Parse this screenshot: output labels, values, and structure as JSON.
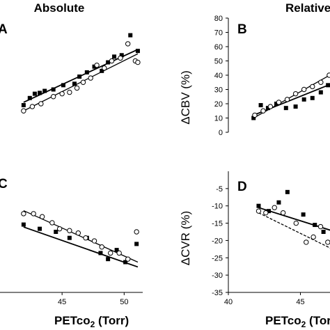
{
  "headers": {
    "left": "Absolute",
    "right": "Relative"
  },
  "x_axis_label": {
    "main": "PETco",
    "sub": "2",
    "unit": " (Torr)"
  },
  "chart_data": [
    {
      "panel": "A",
      "type": "scatter",
      "xticks": [
        "45",
        "50"
      ],
      "xlim": [
        40,
        52
      ],
      "series": [
        {
          "marker": "filled-square",
          "points": [
            [
              41.9,
              19.5
            ],
            [
              42.4,
              22
            ],
            [
              42.8,
              23.5
            ],
            [
              43.2,
              23.8
            ],
            [
              43.6,
              24.5
            ],
            [
              44.3,
              25
            ],
            [
              45.1,
              26.5
            ],
            [
              46,
              27
            ],
            [
              46.4,
              29.5
            ],
            [
              47,
              31
            ],
            [
              47.6,
              33
            ],
            [
              48.2,
              31.5
            ],
            [
              48.7,
              34.5
            ],
            [
              49.2,
              36.5
            ],
            [
              49.8,
              37
            ],
            [
              50.5,
              44
            ],
            [
              51.1,
              38.5
            ]
          ],
          "fit": [
            [
              41.9,
              20.5
            ],
            [
              51.1,
              39
            ]
          ]
        },
        {
          "marker": "open-circle",
          "points": [
            [
              41.9,
              17.5
            ],
            [
              42.6,
              19
            ],
            [
              43.3,
              20
            ],
            [
              44.3,
              22.5
            ],
            [
              45,
              23.5
            ],
            [
              45.6,
              24
            ],
            [
              46.2,
              25.5
            ],
            [
              46.7,
              27.5
            ],
            [
              47.3,
              29
            ],
            [
              47.8,
              33.5
            ],
            [
              48.4,
              32.5
            ],
            [
              49,
              35
            ],
            [
              49.7,
              36
            ],
            [
              50.3,
              41
            ],
            [
              50.9,
              35
            ],
            [
              51.1,
              34.5
            ]
          ],
          "fit": [
            [
              41.9,
              17.5
            ],
            [
              51.1,
              37.5
            ]
          ]
        }
      ]
    },
    {
      "panel": "B",
      "type": "scatter",
      "ylabel": "ΔCBV  (%)",
      "yticks": [
        "0",
        "10",
        "20",
        "30",
        "40",
        "50",
        "60",
        "70",
        "80"
      ],
      "ylim": [
        0,
        80
      ],
      "xlim": [
        40,
        52
      ],
      "series": [
        {
          "marker": "filled-square",
          "points": [
            [
              42.1,
              10
            ],
            [
              42.7,
              19
            ],
            [
              43.3,
              17
            ],
            [
              44,
              20
            ],
            [
              44.8,
              17
            ],
            [
              45.6,
              18
            ],
            [
              46.3,
              23
            ],
            [
              47,
              24
            ],
            [
              47.7,
              28
            ],
            [
              48.3,
              33
            ],
            [
              49,
              37
            ],
            [
              49.5,
              27
            ]
          ],
          "fit": [
            [
              42.1,
              12
            ],
            [
              49.5,
              37
            ]
          ]
        },
        {
          "marker": "open-circle",
          "points": [
            [
              42.2,
              12
            ],
            [
              42.9,
              15
            ],
            [
              43.5,
              18
            ],
            [
              44.2,
              21
            ],
            [
              44.9,
              23
            ],
            [
              45.6,
              27
            ],
            [
              46.3,
              30
            ],
            [
              47,
              32
            ],
            [
              47.7,
              35
            ],
            [
              48.4,
              40
            ],
            [
              49,
              45
            ],
            [
              49.5,
              42
            ]
          ],
          "fit": [
            [
              42.1,
              10
            ],
            [
              49.5,
              45
            ]
          ]
        }
      ]
    },
    {
      "panel": "C",
      "type": "scatter",
      "xticks": [
        "45",
        "50"
      ],
      "xlim": [
        40,
        52
      ],
      "series": [
        {
          "marker": "filled-square",
          "points": [
            [
              41.9,
              -14.8
            ],
            [
              43.2,
              -15.5
            ],
            [
              44.5,
              -16
            ],
            [
              45.6,
              -17
            ],
            [
              47,
              -17
            ],
            [
              48.1,
              -19.5
            ],
            [
              48.7,
              -20.5
            ],
            [
              49.4,
              -19
            ],
            [
              50.1,
              -21
            ],
            [
              51,
              -18
            ]
          ],
          "fit": [
            [
              41.9,
              -15.2
            ],
            [
              51.1,
              -21.8
            ]
          ]
        },
        {
          "marker": "open-circle",
          "points": [
            [
              41.9,
              -13
            ],
            [
              42.7,
              -13
            ],
            [
              43.4,
              -13.5
            ],
            [
              44.2,
              -14.5
            ],
            [
              44.8,
              -15.5
            ],
            [
              45.6,
              -15.8
            ],
            [
              46.3,
              -16.2
            ],
            [
              46.9,
              -17
            ],
            [
              47.6,
              -17.5
            ],
            [
              48.2,
              -18.5
            ],
            [
              48.9,
              -19.5
            ],
            [
              49.6,
              -19.5
            ],
            [
              50.3,
              -20.5
            ],
            [
              51,
              -16
            ]
          ],
          "fit": [
            [
              41.9,
              -12.5
            ],
            [
              51.1,
              -21
            ]
          ]
        }
      ]
    },
    {
      "panel": "D",
      "type": "scatter",
      "ylabel": "ΔCVR  (%)",
      "yticks": [
        "-5",
        "-10",
        "-15",
        "-20",
        "-25",
        "-30",
        "-35"
      ],
      "ylim": [
        -35,
        0
      ],
      "xticks": [
        "40",
        "45"
      ],
      "xlim": [
        40,
        50
      ],
      "series": [
        {
          "marker": "filled-square",
          "points": [
            [
              42.1,
              -10
            ],
            [
              42.8,
              -11.5
            ],
            [
              43.5,
              -9
            ],
            [
              44.1,
              -6
            ],
            [
              45.2,
              -12.5
            ],
            [
              46,
              -15.5
            ],
            [
              46.6,
              -17.5
            ],
            [
              47.2,
              -16.5
            ],
            [
              47.6,
              -22
            ],
            [
              48.2,
              -24.5
            ]
          ],
          "fit": [
            [
              42.1,
              -10.5
            ],
            [
              48.2,
              -18.5
            ]
          ]
        },
        {
          "marker": "open-circle",
          "points": [
            [
              42.1,
              -11.5
            ],
            [
              42.6,
              -12
            ],
            [
              43.2,
              -10.5
            ],
            [
              43.8,
              -12
            ],
            [
              44.7,
              -15
            ],
            [
              45.4,
              -20.5
            ],
            [
              45.9,
              -19
            ],
            [
              46.4,
              -16
            ],
            [
              46.9,
              -20.5
            ],
            [
              47.4,
              -25
            ],
            [
              47.8,
              -28.5
            ],
            [
              48.2,
              -27
            ]
          ],
          "fit": [
            [
              42.1,
              -12
            ],
            [
              48.2,
              -24.5
            ]
          ],
          "fit_style": "dashed"
        }
      ]
    }
  ]
}
